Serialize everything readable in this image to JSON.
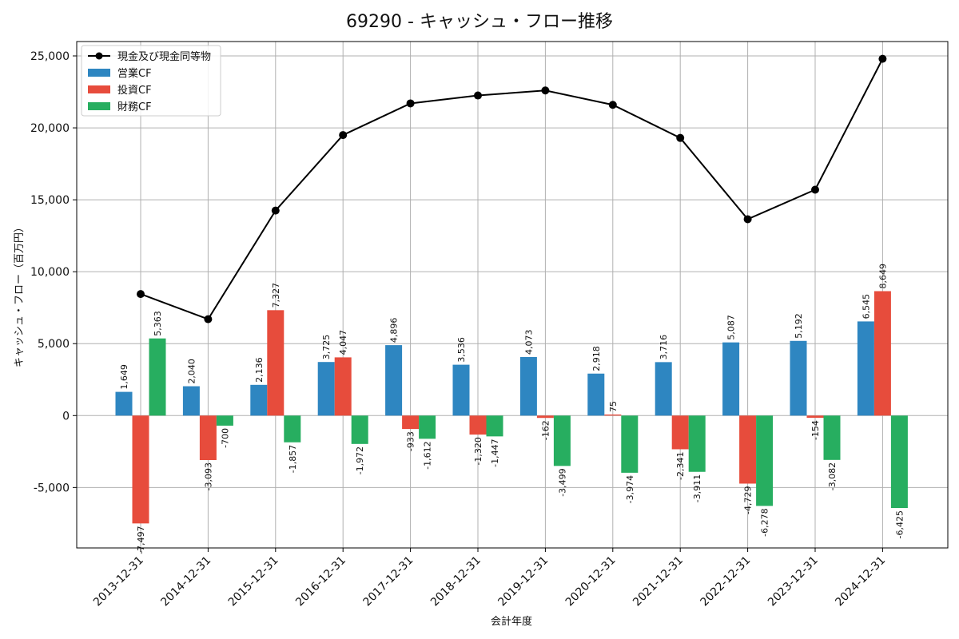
{
  "chart_data": {
    "type": "bar",
    "title": "69290 - キャッシュ・フロー推移",
    "xlabel": "会計年度",
    "ylabel": "キャッシュ・フロー（百万円）",
    "categories": [
      "2013-12-31",
      "2014-12-31",
      "2015-12-31",
      "2016-12-31",
      "2017-12-31",
      "2018-12-31",
      "2019-12-31",
      "2020-12-31",
      "2021-12-31",
      "2022-12-31",
      "2023-12-31",
      "2024-12-31"
    ],
    "ylim": [
      -9200,
      26000
    ],
    "yticks": [
      -5000,
      0,
      5000,
      10000,
      15000,
      20000,
      25000
    ],
    "ytick_labels": [
      "-5,000",
      "0",
      "5,000",
      "10,000",
      "15,000",
      "20,000",
      "25,000"
    ],
    "grid": true,
    "legend_position": "top-left",
    "series": [
      {
        "name": "営業CF",
        "kind": "bar",
        "color": "#2e86c1",
        "values": [
          1649,
          2040,
          2136,
          3725,
          4896,
          3536,
          4073,
          2918,
          3716,
          5087,
          5192,
          6545
        ],
        "labels": [
          "1,649",
          "2,040",
          "2,136",
          "3,725",
          "4,896",
          "3,536",
          "4,073",
          "2,918",
          "3,716",
          "5,087",
          "5,192",
          "6,545"
        ]
      },
      {
        "name": "投資CF",
        "kind": "bar",
        "color": "#e74c3c",
        "values": [
          -7497,
          -3093,
          7327,
          4047,
          -933,
          -1320,
          -162,
          75,
          -2341,
          -4729,
          -154,
          8649
        ],
        "labels": [
          "-7,497",
          "-3,093",
          "7,327",
          "4,047",
          "-933",
          "-1,320",
          "-162",
          "75",
          "-2,341",
          "-4,729",
          "-154",
          "8,649"
        ]
      },
      {
        "name": "財務CF",
        "kind": "bar",
        "color": "#27ae60",
        "values": [
          5363,
          -700,
          -1857,
          -1972,
          -1612,
          -1447,
          -3499,
          -3974,
          -3911,
          -6278,
          -3082,
          -6425
        ],
        "labels": [
          "5,363",
          "-700",
          "-1,857",
          "-1,972",
          "-1,612",
          "-1,447",
          "-3,499",
          "-3,974",
          "-3,911",
          "-6,278",
          "-3,082",
          "-6,425"
        ]
      },
      {
        "name": "現金及び現金同等物",
        "kind": "line",
        "color": "#000000",
        "values": [
          8450,
          6700,
          14250,
          19500,
          21700,
          22250,
          22600,
          21600,
          19300,
          13650,
          15700,
          24800
        ]
      }
    ]
  }
}
